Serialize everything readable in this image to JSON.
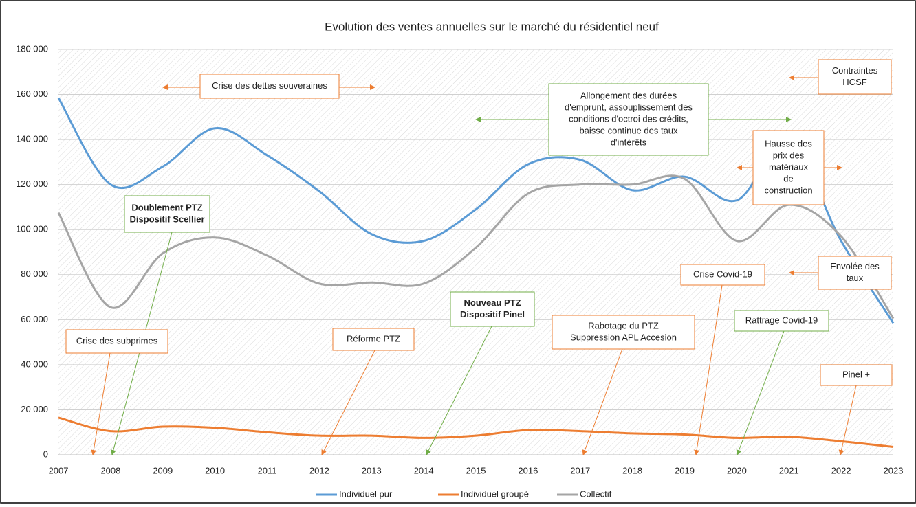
{
  "chart_data": {
    "type": "line",
    "title": "Evolution des ventes annuelles sur le marché du résidentiel neuf",
    "x": [
      2007,
      2008,
      2009,
      2010,
      2011,
      2012,
      2013,
      2014,
      2015,
      2016,
      2017,
      2018,
      2019,
      2020,
      2021,
      2022,
      2023
    ],
    "xlim": [
      2007,
      2023
    ],
    "ylim": [
      0,
      180000
    ],
    "yticks": [
      0,
      {
        "value": 20000,
        "label": "20 000"
      },
      {
        "value": 40000,
        "label": "40 000"
      },
      {
        "value": 60000,
        "label": "60 000"
      },
      {
        "value": 80000,
        "label": "80 000"
      },
      {
        "value": 100000,
        "label": "100 000"
      },
      {
        "value": 120000,
        "label": "120 000"
      },
      {
        "value": 140000,
        "label": "140 000"
      },
      {
        "value": 160000,
        "label": "160 000"
      },
      {
        "value": 180000,
        "label": "180 000"
      }
    ],
    "grid": true,
    "smooth": true,
    "legend": "bottom",
    "series": [
      {
        "name": "Individuel pur",
        "color": "#5b9bd5",
        "values": [
          158500,
          120000,
          128000,
          145000,
          133000,
          117000,
          98000,
          95000,
          109000,
          129000,
          131000,
          117500,
          123500,
          113000,
          139000,
          95000,
          58500
        ]
      },
      {
        "name": "Individuel groupé",
        "color": "#ed7d31",
        "values": [
          16500,
          10500,
          12500,
          12000,
          10000,
          8500,
          8500,
          7500,
          8500,
          11000,
          10500,
          9500,
          9000,
          7500,
          8000,
          6000,
          3500
        ]
      },
      {
        "name": "Collectif",
        "color": "#a5a5a5",
        "values": [
          107500,
          65500,
          89500,
          96500,
          88500,
          76000,
          76500,
          76000,
          92000,
          116000,
          120000,
          120000,
          122500,
          95000,
          111000,
          97000,
          60500
        ]
      }
    ],
    "annotations": [
      {
        "lines": [
          "Crise des dettes souveraines"
        ],
        "color": "#ed7d31"
      },
      {
        "lines": [
          "Allongement des durées",
          "d'emprunt, assouplissement des",
          "conditions d'octroi des crédits,",
          "baisse continue des taux",
          "d'intérêts"
        ],
        "color": "#70ad47"
      },
      {
        "lines": [
          "Contraintes",
          "HCSF"
        ],
        "color": "#ed7d31"
      },
      {
        "lines": [
          "Hausse des",
          "prix des",
          "matériaux",
          "de",
          "construction"
        ],
        "color": "#ed7d31"
      },
      {
        "lines": [
          "Doublement PTZ",
          "Dispositif Scellier"
        ],
        "color": "#70ad47",
        "bold": true
      },
      {
        "lines": [
          "Envolée des",
          "taux"
        ],
        "color": "#ed7d31"
      },
      {
        "lines": [
          "Crise Covid-19"
        ],
        "color": "#ed7d31"
      },
      {
        "lines": [
          "Nouveau PTZ",
          "Dispositif Pinel"
        ],
        "color": "#70ad47",
        "bold": true
      },
      {
        "lines": [
          "Rabotage du PTZ",
          "Suppression APL Accesion"
        ],
        "color": "#ed7d31"
      },
      {
        "lines": [
          "Rattrage Covid-19"
        ],
        "color": "#70ad47"
      },
      {
        "lines": [
          "Crise des subprimes"
        ],
        "color": "#ed7d31"
      },
      {
        "lines": [
          "Réforme PTZ"
        ],
        "color": "#ed7d31"
      },
      {
        "lines": [
          "Pinel +"
        ],
        "color": "#ed7d31"
      }
    ]
  }
}
